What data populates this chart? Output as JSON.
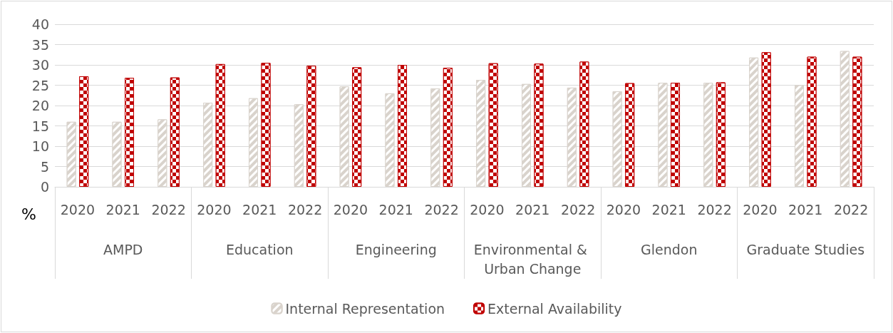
{
  "chart_data": {
    "type": "bar",
    "ylabel": "%",
    "categories": [
      "2020",
      "2021",
      "2022",
      "2020",
      "2021",
      "2022",
      "2020",
      "2021",
      "2022",
      "2020",
      "2021",
      "2022",
      "2020",
      "2021",
      "2022",
      "2020",
      "2021",
      "2022"
    ],
    "annotations": [
      "AMPD",
      "Education",
      "Engineering",
      "Environmental & Urban Change",
      "Glendon",
      "Graduate Studies"
    ],
    "series": [
      {
        "name": "Internal Representation",
        "color": "#d9d3cc",
        "values": [
          16,
          16,
          16.6,
          20.7,
          21.8,
          20.3,
          24.7,
          23.0,
          24.2,
          26.3,
          25.3,
          24.4,
          23.5,
          25.6,
          25.6,
          31.8,
          25.0,
          33.4
        ]
      },
      {
        "name": "External Availability",
        "color": "#c00000",
        "values": [
          27.2,
          26.8,
          26.9,
          30.2,
          30.5,
          29.8,
          29.4,
          30.0,
          29.3,
          30.4,
          30.3,
          30.8,
          25.5,
          25.6,
          25.7,
          33.1,
          32.0,
          32.0
        ]
      }
    ],
    "ylim": [
      0,
      40
    ],
    "yticks": [
      0,
      5,
      10,
      15,
      20,
      25,
      30,
      35,
      40
    ],
    "grid": "y",
    "legend": "bottom"
  }
}
